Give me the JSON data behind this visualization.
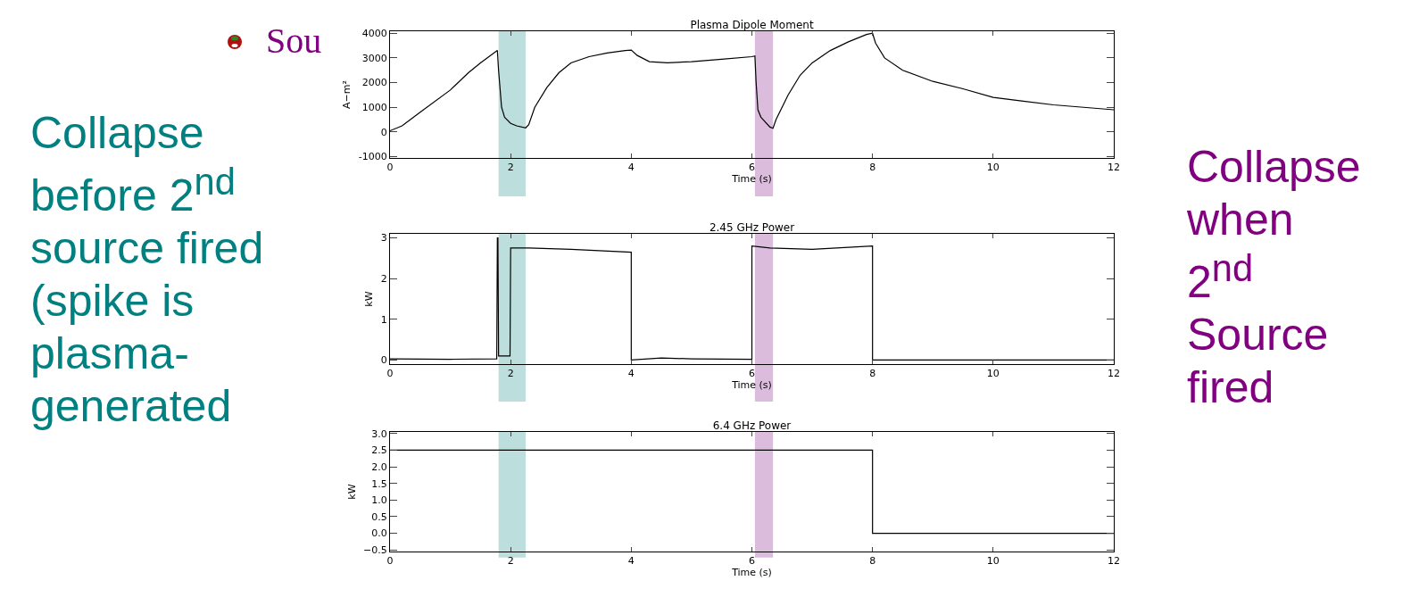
{
  "chart_data": [
    {
      "type": "line",
      "title": "Plasma Dipole Moment",
      "xlabel": "Time (s)",
      "ylabel": "A−m²",
      "xlim": [
        0,
        12
      ],
      "xticks": [
        0,
        2,
        4,
        6,
        8,
        10,
        12
      ],
      "ylim": [
        -1050,
        4080
      ],
      "yticks": [
        -1000,
        0,
        1000,
        2000,
        3000,
        4000
      ],
      "grid": false,
      "marker": "none",
      "line_style": "solid",
      "series": [
        {
          "color": "#000000",
          "x": [
            0,
            0.2,
            0.5,
            1.0,
            1.3,
            1.5,
            1.75,
            1.78,
            1.8,
            1.85,
            1.9,
            2.0,
            2.1,
            2.25,
            2.3,
            2.4,
            2.6,
            2.8,
            3.0,
            3.3,
            3.6,
            3.9,
            4.0,
            4.1,
            4.3,
            4.6,
            5.0,
            5.5,
            6.0,
            6.05,
            6.07,
            6.1,
            6.15,
            6.3,
            6.35,
            6.4,
            6.6,
            6.8,
            7.0,
            7.3,
            7.6,
            7.9,
            8.0,
            8.05,
            8.2,
            8.5,
            9.0,
            9.5,
            10.0,
            10.5,
            11.0,
            11.5,
            12.0
          ],
          "values": [
            50,
            250,
            800,
            1700,
            2400,
            2800,
            3250,
            3300,
            2500,
            1000,
            600,
            350,
            250,
            170,
            300,
            1000,
            1800,
            2400,
            2800,
            3050,
            3200,
            3300,
            3320,
            3100,
            2850,
            2800,
            2850,
            2950,
            3050,
            3080,
            2000,
            900,
            600,
            200,
            150,
            500,
            1500,
            2300,
            2800,
            3300,
            3650,
            3950,
            4000,
            3600,
            3000,
            2500,
            2050,
            1750,
            1400,
            1250,
            1100,
            1000,
            900
          ]
        }
      ],
      "bands": [
        {
          "axis": "x",
          "from": 1.8,
          "to": 2.25,
          "color": "#bcdedd"
        },
        {
          "axis": "x",
          "from": 6.05,
          "to": 6.35,
          "color": "#dcbcdc"
        }
      ],
      "annotations": [
        "Sou",
        "Collapse before 2$^{nd}$ source fired (spike is plasma-generated",
        "Collapse when 2$^{nd}$ Source fired"
      ]
    },
    {
      "type": "line",
      "title": "2.45 GHz Power",
      "xlabel": "Time (s)",
      "ylabel": "kW",
      "xlim": [
        0,
        12
      ],
      "xticks": [
        0,
        2,
        4,
        6,
        8,
        10,
        12
      ],
      "ylim": [
        -0.1,
        3.1
      ],
      "yticks": [
        0,
        1,
        2,
        3
      ],
      "grid": false,
      "marker": "none",
      "line_style": "solid",
      "series": [
        {
          "color": "#000000",
          "x": [
            0,
            1.0,
            1.77,
            1.78,
            1.79,
            1.8,
            1.99,
            2.0,
            2.3,
            3.0,
            4.0,
            4.0,
            4.5,
            5.0,
            6.0,
            6.0,
            6.3,
            7.0,
            8.0,
            8.0,
            12.0
          ],
          "values": [
            0.03,
            0.02,
            0.03,
            3.0,
            3.0,
            0.1,
            0.1,
            2.75,
            2.75,
            2.72,
            2.65,
            0,
            0.05,
            0.03,
            0.02,
            2.8,
            2.75,
            2.72,
            2.8,
            0,
            0
          ]
        }
      ],
      "bands": [
        {
          "axis": "x",
          "from": 1.8,
          "to": 2.25,
          "color": "#bcdedd"
        },
        {
          "axis": "x",
          "from": 6.05,
          "to": 6.35,
          "color": "#dcbcdc"
        }
      ]
    },
    {
      "type": "line",
      "title": "6.4 GHz Power",
      "xlabel": "Time (s)",
      "ylabel": "kW",
      "xlim": [
        0,
        12
      ],
      "xticks": [
        0,
        2,
        4,
        6,
        8,
        10,
        12
      ],
      "ylim": [
        -0.55,
        3.05
      ],
      "yticks": [
        {
          "value": -0.5,
          "label": "−0.5"
        },
        {
          "value": 0,
          "label": "0.0"
        },
        {
          "value": 0.5,
          "label": "0.5"
        },
        {
          "value": 1,
          "label": "1.0"
        },
        {
          "value": 1.5,
          "label": "1.5"
        },
        {
          "value": 2,
          "label": "2.0"
        },
        {
          "value": 2.5,
          "label": "2.5"
        },
        {
          "value": 3,
          "label": "3.0"
        }
      ],
      "grid": false,
      "marker": "none",
      "line_style": "solid",
      "series": [
        {
          "color": "#000000",
          "x": [
            0,
            8,
            8,
            12
          ],
          "values": [
            2.5,
            2.5,
            0,
            0
          ]
        }
      ],
      "bands": [
        {
          "axis": "x",
          "from": 1.8,
          "to": 2.25,
          "color": "#bcdedd"
        },
        {
          "axis": "x",
          "from": 6.05,
          "to": 6.35,
          "color": "#dcbcdc"
        }
      ]
    }
  ]
}
